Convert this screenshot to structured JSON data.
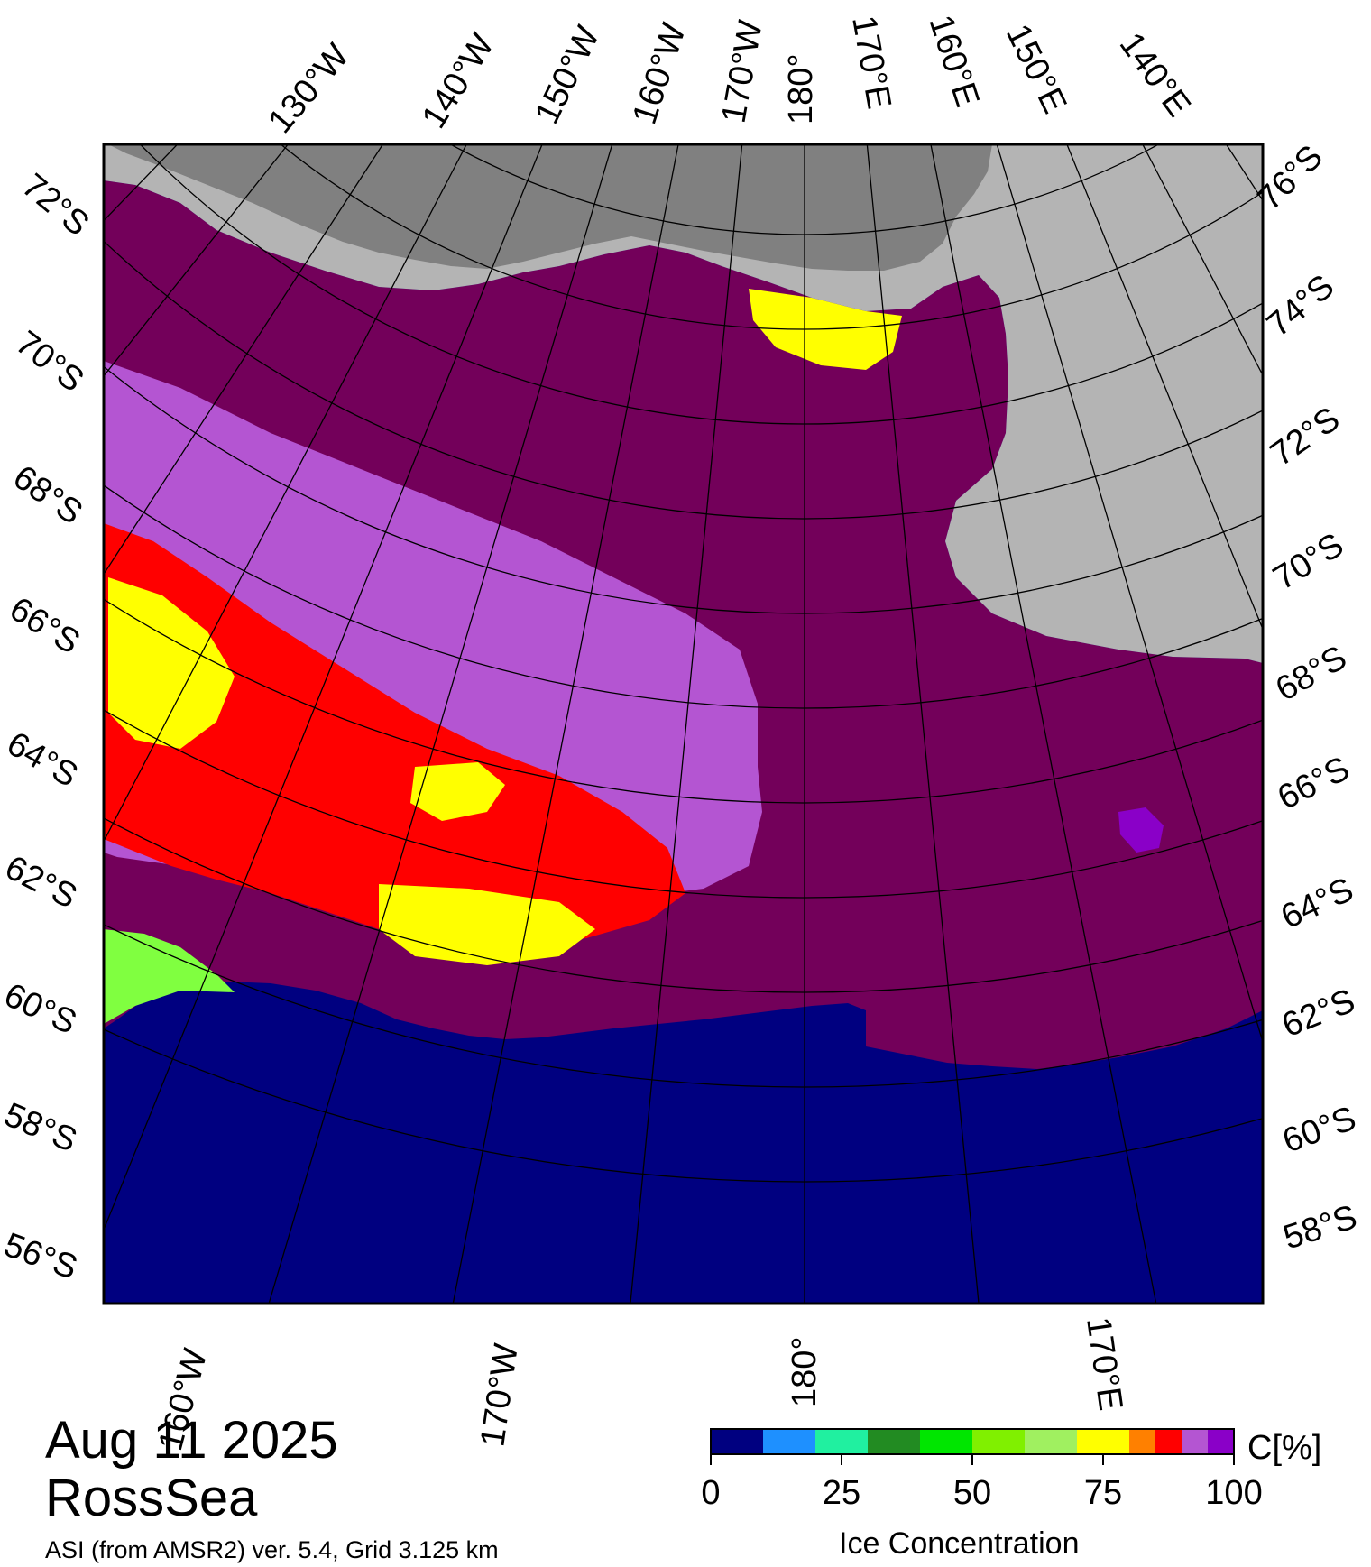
{
  "header": {
    "date": "Aug 11 2025",
    "region": "RossSea",
    "caption": "ASI (from AMSR2) ver. 5.4,  Grid 3.125 km"
  },
  "map": {
    "top_longitude_labels": [
      "130°W",
      "140°W",
      "150°W",
      "160°W",
      "170°W",
      "180°",
      "170°E",
      "160°E",
      "150°E",
      "140°E"
    ],
    "bottom_longitude_labels": [
      "160°W",
      "170°W",
      "180°",
      "170°E"
    ],
    "left_latitude_labels": [
      "72°S",
      "70°S",
      "68°S",
      "66°S",
      "64°S",
      "62°S",
      "60°S",
      "58°S",
      "56°S"
    ],
    "right_latitude_labels": [
      "76°S",
      "74°S",
      "72°S",
      "70°S",
      "68°S",
      "66°S",
      "64°S",
      "62°S",
      "60°S",
      "58°S"
    ],
    "colors": {
      "open_water": "#000080",
      "land": "#b4b4b4",
      "ice_shelf": "#808080",
      "pack_ice_100": "#73005a",
      "pack_ice_95": "#8a00c8",
      "pack_ice_90": "#b455d2",
      "ice_80": "#ff0000",
      "ice_75": "#ffff00",
      "ice_60": "#80ff40"
    }
  },
  "colorbar": {
    "unit": "C[%]",
    "title": "Ice Concentration",
    "ticks": [
      "0",
      "25",
      "50",
      "75",
      "100"
    ],
    "tick_values": [
      0,
      25,
      50,
      75,
      100
    ],
    "range": [
      0,
      100
    ],
    "bins": [
      {
        "from": 0,
        "to": 10,
        "color": "#000080"
      },
      {
        "from": 10,
        "to": 20,
        "color": "#1e90ff"
      },
      {
        "from": 20,
        "to": 30,
        "color": "#20f0a0"
      },
      {
        "from": 30,
        "to": 40,
        "color": "#228b22"
      },
      {
        "from": 40,
        "to": 50,
        "color": "#00e600"
      },
      {
        "from": 50,
        "to": 60,
        "color": "#80f000"
      },
      {
        "from": 60,
        "to": 70,
        "color": "#a0f060"
      },
      {
        "from": 70,
        "to": 80,
        "color": "#ffff00"
      },
      {
        "from": 80,
        "to": 85,
        "color": "#ff8000"
      },
      {
        "from": 85,
        "to": 90,
        "color": "#ff0000"
      },
      {
        "from": 90,
        "to": 95,
        "color": "#b455d2"
      },
      {
        "from": 95,
        "to": 100,
        "color": "#8a00c8"
      }
    ]
  }
}
